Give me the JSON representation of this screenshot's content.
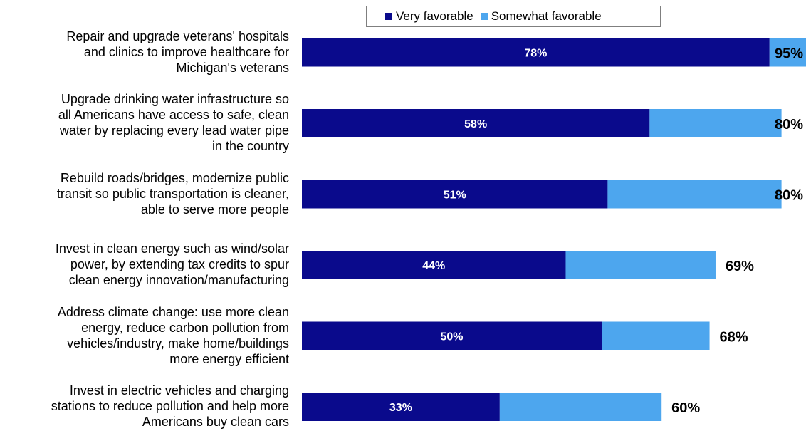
{
  "chart_data": {
    "type": "bar",
    "orientation": "horizontal",
    "stacked": true,
    "xlim": [
      0,
      100
    ],
    "legend_position": "top",
    "grid": false,
    "categories": [
      [
        "Repair and upgrade veterans' hospitals",
        "and clinics to improve healthcare for",
        "Michigan's veterans"
      ],
      [
        "Upgrade drinking water infrastructure so",
        "all Americans have access to safe, clean",
        "water by replacing every lead water pipe",
        "in the country"
      ],
      [
        "Rebuild roads/bridges, modernize public",
        "transit so public transportation is cleaner,",
        "able to serve more people"
      ],
      [
        "Invest in clean energy such as wind/solar",
        "power, by extending tax credits to spur",
        "clean energy innovation/manufacturing"
      ],
      [
        "Address climate change: use more clean",
        "energy, reduce carbon pollution from",
        "vehicles/industry, make home/buildings",
        "more energy efficient"
      ],
      [
        "Invest in electric vehicles and charging",
        "stations to reduce pollution and help more",
        "Americans buy clean cars"
      ]
    ],
    "series": [
      {
        "name": "Very favorable",
        "color": "#0a0a8c",
        "values": [
          78,
          58,
          51,
          44,
          50,
          33
        ]
      },
      {
        "name": "Somewhat favorable",
        "color": "#4da6ee",
        "values": [
          17,
          22,
          29,
          25,
          18,
          27
        ]
      }
    ],
    "segment_labels": [
      "78%",
      "58%",
      "51%",
      "44%",
      "50%",
      "33%"
    ],
    "totals": [
      95,
      80,
      80,
      69,
      68,
      60
    ],
    "total_labels": [
      "95%",
      "80%",
      "80%",
      "69%",
      "68%",
      "60%"
    ]
  }
}
